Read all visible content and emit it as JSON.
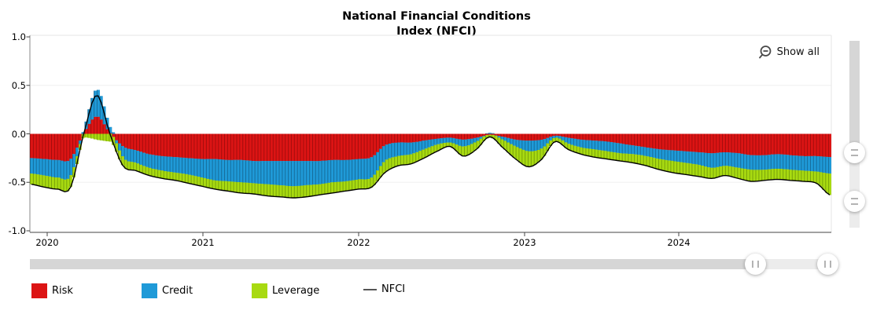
{
  "title": {
    "line1": "National Financial Conditions",
    "line2": "Index (NFCI)"
  },
  "controls": {
    "show_all_label": "Show all",
    "zoom_out_icon": "magnifier-minus"
  },
  "legend": [
    {
      "label": "Risk",
      "color": "#dc1414",
      "type": "box"
    },
    {
      "label": "Credit",
      "color": "#1f9ad8",
      "type": "box"
    },
    {
      "label": "Leverage",
      "color": "#a8da11",
      "type": "box"
    },
    {
      "label": "NFCI",
      "color": "#555555",
      "type": "line"
    }
  ],
  "axes": {
    "y": {
      "labels": [
        "1.0",
        "0.5",
        "0.0",
        "-0.5",
        "-1.0"
      ],
      "ticks": [
        1.0,
        0.5,
        0.0,
        -0.5,
        -1.0
      ],
      "grid": [
        0.5,
        -0.5
      ],
      "range": [
        -1.0,
        1.0
      ]
    },
    "x": {
      "labels": [
        "2020",
        "2021",
        "2022",
        "2023",
        "2024"
      ]
    }
  },
  "chart_data": {
    "type": "stacked-bar+line",
    "title": "National Financial Conditions Index (NFCI)",
    "ylim": [
      -1.0,
      1.0
    ],
    "x_resolution_note": "weekly bars on screen; values below are monthly samples read from the chart, smoothly interpolated for display",
    "months": [
      "2019-11",
      "2019-12",
      "2020-01",
      "2020-02",
      "2020-03",
      "2020-04",
      "2020-05",
      "2020-06",
      "2020-07",
      "2020-08",
      "2020-09",
      "2020-10",
      "2020-11",
      "2020-12",
      "2021-01",
      "2021-02",
      "2021-03",
      "2021-04",
      "2021-05",
      "2021-06",
      "2021-07",
      "2021-08",
      "2021-09",
      "2021-10",
      "2021-11",
      "2021-12",
      "2022-01",
      "2022-02",
      "2022-03",
      "2022-04",
      "2022-05",
      "2022-06",
      "2022-07",
      "2022-08",
      "2022-09",
      "2022-10",
      "2022-11",
      "2022-12",
      "2023-01",
      "2023-02",
      "2023-03",
      "2023-04",
      "2023-05",
      "2023-06",
      "2023-07",
      "2023-08",
      "2023-09",
      "2023-10",
      "2023-11",
      "2023-12",
      "2024-01",
      "2024-02",
      "2024-03",
      "2024-04",
      "2024-05",
      "2024-06",
      "2024-07",
      "2024-08",
      "2024-09",
      "2024-10",
      "2024-11",
      "2024-12"
    ],
    "series": [
      {
        "name": "Risk",
        "kind": "bar",
        "color": "#dc1414",
        "color_dark": "#a50d0d",
        "values": [
          -0.25,
          -0.26,
          -0.27,
          -0.26,
          0.01,
          0.18,
          0.01,
          -0.13,
          -0.17,
          -0.21,
          -0.23,
          -0.24,
          -0.25,
          -0.26,
          -0.26,
          -0.27,
          -0.27,
          -0.28,
          -0.28,
          -0.28,
          -0.28,
          -0.28,
          -0.28,
          -0.27,
          -0.27,
          -0.26,
          -0.24,
          -0.12,
          -0.09,
          -0.09,
          -0.07,
          -0.05,
          -0.04,
          -0.06,
          -0.04,
          -0.01,
          -0.03,
          -0.06,
          -0.07,
          -0.06,
          -0.02,
          -0.04,
          -0.06,
          -0.07,
          -0.08,
          -0.1,
          -0.12,
          -0.14,
          -0.16,
          -0.17,
          -0.18,
          -0.19,
          -0.2,
          -0.19,
          -0.2,
          -0.22,
          -0.22,
          -0.21,
          -0.22,
          -0.23,
          -0.23,
          -0.24
        ]
      },
      {
        "name": "Credit",
        "kind": "bar",
        "color": "#1f9ad8",
        "color_dark": "#166e9c",
        "values": [
          -0.16,
          -0.17,
          -0.18,
          -0.17,
          0.03,
          0.28,
          0.07,
          -0.11,
          -0.13,
          -0.14,
          -0.15,
          -0.16,
          -0.17,
          -0.19,
          -0.22,
          -0.22,
          -0.23,
          -0.23,
          -0.24,
          -0.25,
          -0.26,
          -0.25,
          -0.24,
          -0.23,
          -0.22,
          -0.21,
          -0.21,
          -0.16,
          -0.14,
          -0.12,
          -0.09,
          -0.06,
          -0.05,
          -0.07,
          -0.04,
          0.01,
          -0.03,
          -0.07,
          -0.11,
          -0.09,
          -0.02,
          -0.06,
          -0.08,
          -0.09,
          -0.1,
          -0.1,
          -0.09,
          -0.09,
          -0.1,
          -0.11,
          -0.12,
          -0.13,
          -0.15,
          -0.14,
          -0.15,
          -0.15,
          -0.15,
          -0.15,
          -0.15,
          -0.15,
          -0.16,
          -0.17
        ]
      },
      {
        "name": "Leverage",
        "kind": "bar",
        "color": "#a8da11",
        "color_dark": "#79a30a",
        "values": [
          -0.11,
          -0.12,
          -0.12,
          -0.12,
          -0.04,
          -0.06,
          -0.08,
          -0.09,
          -0.08,
          -0.08,
          -0.08,
          -0.08,
          -0.09,
          -0.09,
          -0.09,
          -0.1,
          -0.11,
          -0.11,
          -0.12,
          -0.12,
          -0.12,
          -0.12,
          -0.11,
          -0.11,
          -0.1,
          -0.1,
          -0.1,
          -0.12,
          -0.1,
          -0.1,
          -0.09,
          -0.07,
          -0.04,
          -0.1,
          -0.08,
          -0.03,
          -0.08,
          -0.13,
          -0.16,
          -0.11,
          -0.04,
          -0.06,
          -0.07,
          -0.08,
          -0.08,
          -0.08,
          -0.09,
          -0.1,
          -0.11,
          -0.12,
          -0.12,
          -0.12,
          -0.11,
          -0.1,
          -0.11,
          -0.12,
          -0.11,
          -0.11,
          -0.11,
          -0.11,
          -0.12,
          -0.22
        ]
      },
      {
        "name": "NFCI",
        "kind": "line",
        "color": "#000000",
        "values": [
          -0.52,
          -0.55,
          -0.57,
          -0.55,
          0.0,
          0.4,
          0.0,
          -0.33,
          -0.38,
          -0.43,
          -0.46,
          -0.48,
          -0.51,
          -0.54,
          -0.57,
          -0.59,
          -0.61,
          -0.62,
          -0.64,
          -0.65,
          -0.66,
          -0.65,
          -0.63,
          -0.61,
          -0.59,
          -0.57,
          -0.55,
          -0.4,
          -0.33,
          -0.31,
          -0.25,
          -0.18,
          -0.13,
          -0.23,
          -0.16,
          -0.03,
          -0.14,
          -0.26,
          -0.34,
          -0.26,
          -0.08,
          -0.16,
          -0.21,
          -0.24,
          -0.26,
          -0.28,
          -0.3,
          -0.33,
          -0.37,
          -0.4,
          -0.42,
          -0.44,
          -0.46,
          -0.43,
          -0.46,
          -0.49,
          -0.48,
          -0.47,
          -0.48,
          -0.49,
          -0.51,
          -0.63
        ]
      }
    ]
  }
}
